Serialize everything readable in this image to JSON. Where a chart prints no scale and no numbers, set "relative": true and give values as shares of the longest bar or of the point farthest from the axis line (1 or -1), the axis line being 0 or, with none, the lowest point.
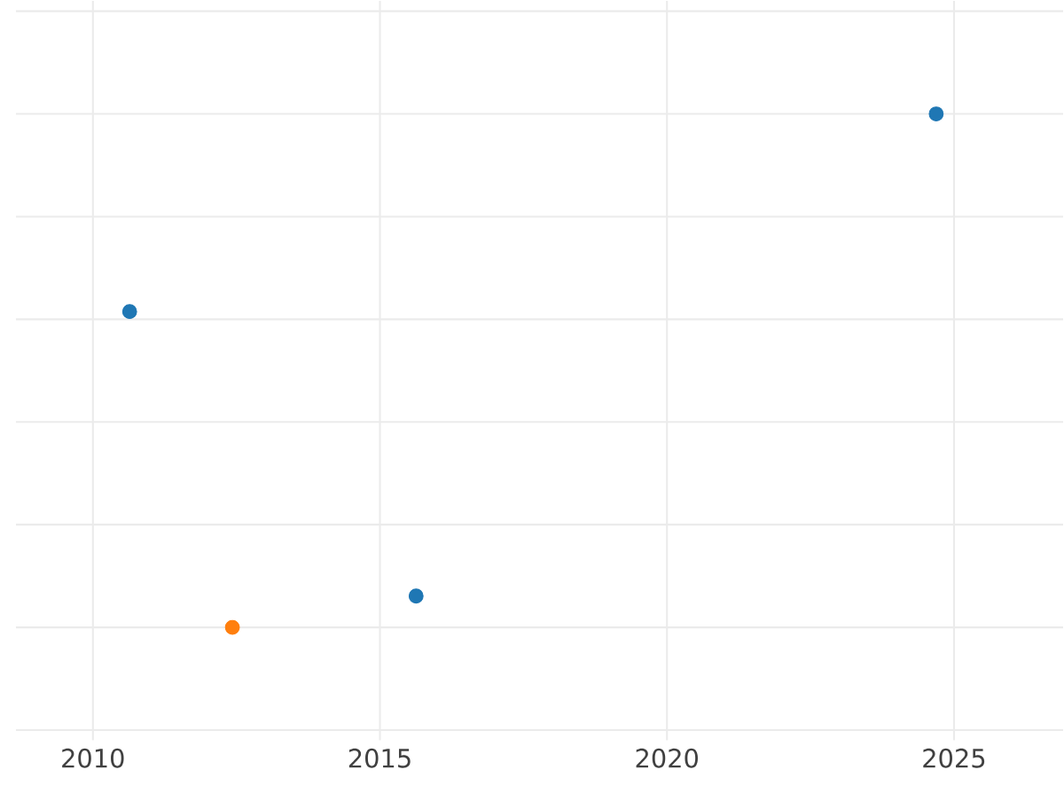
{
  "chart_data": {
    "type": "scatter",
    "relative": true,
    "marker": "circle",
    "grid": true,
    "xlim": [
      2008.66,
      2026.9
    ],
    "xticks": [
      2010,
      2015,
      2020,
      2025
    ],
    "series": [
      {
        "color": "#1f77b4",
        "x": [
          2010.64,
          2015.63,
          2024.69
        ],
        "values": [
          0.615,
          0.061,
          1
        ]
      },
      {
        "color": "#ff7f0e",
        "x": [
          2012.43
        ],
        "values": [
          0
        ]
      }
    ]
  }
}
